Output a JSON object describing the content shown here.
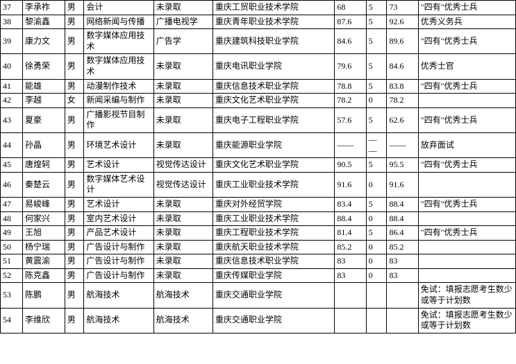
{
  "rows": [
    {
      "idx": "37",
      "name": "李承祚",
      "gender": "男",
      "major1": "会计",
      "major2": "未录取",
      "school": "重庆工贸职业技术学院",
      "s1": "68",
      "s2": "5",
      "s3": "73",
      "remark": "\"四有\"优秀士兵"
    },
    {
      "idx": "38",
      "name": "黎渝鑫",
      "gender": "男",
      "major1": "网络新闻与传播",
      "major2": "广播电视学",
      "school": "重庆青年职业技术学院",
      "s1": "87.6",
      "s2": "5",
      "s3": "92.6",
      "remark": "优秀义务兵"
    },
    {
      "idx": "39",
      "name": "康力文",
      "gender": "男",
      "major1": "数字媒体应用技术",
      "major2": "广告学",
      "school": "重庆建筑科技职业学院",
      "s1": "84.6",
      "s2": "5",
      "s3": "89.6",
      "remark": "\"四有\"优秀士兵"
    },
    {
      "idx": "40",
      "name": "徐勇荣",
      "gender": "男",
      "major1": "数字媒体应用技术",
      "major2": "未录取",
      "school": "重庆电讯职业学院",
      "s1": "79.6",
      "s2": "5",
      "s3": "84.6",
      "remark": "优秀士官"
    },
    {
      "idx": "41",
      "name": "能雄",
      "gender": "男",
      "major1": "动漫制作技术",
      "major2": "未录取",
      "school": "重庆信息技术职业学院",
      "s1": "78.8",
      "s2": "5",
      "s3": "83.8",
      "remark": "\"四有\"优秀士兵"
    },
    {
      "idx": "42",
      "name": "李越",
      "gender": "女",
      "major1": "新闻采编与制作",
      "major2": "未录取",
      "school": "重庆文化艺术职业学院",
      "s1": "78.2",
      "s2": "0",
      "s3": "78.2",
      "remark": ""
    },
    {
      "idx": "43",
      "name": "夏豪",
      "gender": "男",
      "major1": "广播影视节目制作",
      "major2": "未录取",
      "school": "重庆电子工程职业学院",
      "s1": "57.6",
      "s2": "5",
      "s3": "62.6",
      "remark": "\"四有\"优秀士兵"
    },
    {
      "idx": "44",
      "name": "孙晶",
      "gender": "男",
      "major1": "环境艺术设计",
      "major2": "未录取",
      "school": "重庆能源职业学院",
      "s1": "——",
      "s2": "——",
      "s3": "——",
      "remark": "放弃面试"
    },
    {
      "idx": "45",
      "name": "唐煌轲",
      "gender": "男",
      "major1": "艺术设计",
      "major2": "视觉传达设计",
      "school": "重庆文化艺术职业学院",
      "s1": "90.5",
      "s2": "5",
      "s3": "95.5",
      "remark": "\"四有\"优秀士兵"
    },
    {
      "idx": "46",
      "name": "秦楚云",
      "gender": "男",
      "major1": "数字媒体艺术设计",
      "major2": "视觉传达设计",
      "school": "重庆工业职业技术学院",
      "s1": "91.6",
      "s2": "0",
      "s3": "91.6",
      "remark": ""
    },
    {
      "idx": "47",
      "name": "易峻峰",
      "gender": "男",
      "major1": "艺术设计",
      "major2": "未录取",
      "school": "重庆对外经贸学院",
      "s1": "83.4",
      "s2": "5",
      "s3": "88.4",
      "remark": "\"四有\"优秀士兵"
    },
    {
      "idx": "48",
      "name": "何家兴",
      "gender": "男",
      "major1": "室内艺术设计",
      "major2": "未录取",
      "school": "重庆工业职业技术学院",
      "s1": "88.4",
      "s2": "0",
      "s3": "88.4",
      "remark": ""
    },
    {
      "idx": "49",
      "name": "王旭",
      "gender": "男",
      "major1": "产品艺术设计",
      "major2": "未录取",
      "school": "重庆工程职业技术学院",
      "s1": "81.4",
      "s2": "5",
      "s3": "86.4",
      "remark": "\"四有\"优秀士兵"
    },
    {
      "idx": "50",
      "name": "杨宁瑞",
      "gender": "男",
      "major1": "广告设计与制作",
      "major2": "未录取",
      "school": "重庆航天职业技术学院",
      "s1": "85.2",
      "s2": "0",
      "s3": "85.2",
      "remark": ""
    },
    {
      "idx": "51",
      "name": "黄震渝",
      "gender": "男",
      "major1": "广告设计与制作",
      "major2": "未录取",
      "school": "重庆信息技术职业学院",
      "s1": "83",
      "s2": "0",
      "s3": "83",
      "remark": ""
    },
    {
      "idx": "52",
      "name": "陈克鑫",
      "gender": "男",
      "major1": "广告设计与制作",
      "major2": "未录取",
      "school": "重庆传媒职业学院",
      "s1": "83",
      "s2": "0",
      "s3": "83",
      "remark": ""
    },
    {
      "idx": "53",
      "name": "陈鹏",
      "gender": "男",
      "major1": "航海技术",
      "major2": "航海技术",
      "school": "重庆交通职业学院",
      "s1": "",
      "s2": "",
      "s3": "",
      "remark": "免试：填报志愿考生数少或等于计划数"
    },
    {
      "idx": "54",
      "name": "李维欣",
      "gender": "男",
      "major1": "航海技术",
      "major2": "航海技术",
      "school": "重庆交通职业学院",
      "s1": "",
      "s2": "",
      "s3": "",
      "remark": "免试：填报志愿考生数少或等于计划数"
    }
  ]
}
